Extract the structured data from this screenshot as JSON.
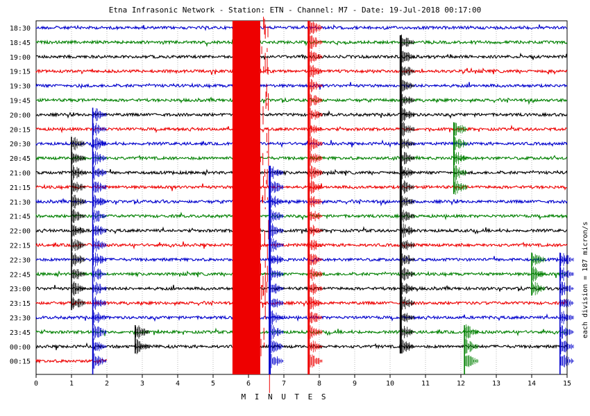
{
  "title": "Etna Infrasonic Network - Station: ETN - Channel: M7 - Date: 19-Jul-2018 00:17:00",
  "chart_data": {
    "type": "line",
    "title": "Etna Infrasonic Network - Station: ETN - Channel: M7 - Date: 19-Jul-2018 00:17:00",
    "xlabel": "M I N U T E S",
    "ylabel": "",
    "scale_note": "each division = 187 micron/s",
    "xlim": [
      0,
      15
    ],
    "x_ticks": [
      "0",
      "1",
      "2",
      "3",
      "4",
      "5",
      "6",
      "7",
      "8",
      "9",
      "10",
      "11",
      "12",
      "13",
      "14",
      "15"
    ],
    "grid": true,
    "trace_colors": [
      "#0000cc",
      "#008000",
      "#000000",
      "#ee0000"
    ],
    "row_labels": [
      "18:30",
      "18:45",
      "19:00",
      "19:15",
      "19:30",
      "19:45",
      "20:00",
      "20:15",
      "20:30",
      "20:45",
      "21:00",
      "21:15",
      "21:30",
      "21:45",
      "22:00",
      "22:15",
      "22:30",
      "22:45",
      "23:00",
      "23:15",
      "23:30",
      "23:45",
      "00:00",
      "00:15"
    ],
    "last_row_end_minute": 2.0,
    "events": [
      {
        "minute": 5.9,
        "rows": [
          0,
          23
        ],
        "amplitude": "saturated",
        "color": "#ee0000"
      },
      {
        "minute": 6.6,
        "rows": [
          10,
          23
        ],
        "amplitude": "high",
        "color": "#0000cc"
      },
      {
        "minute": 7.7,
        "rows": [
          0,
          23
        ],
        "amplitude": "high",
        "color": "#ee0000"
      },
      {
        "minute": 10.3,
        "rows": [
          1,
          22
        ],
        "amplitude": "high",
        "color": "#000000"
      },
      {
        "minute": 1.0,
        "rows": [
          8,
          19
        ],
        "amplitude": "medium",
        "color": "#000000"
      },
      {
        "minute": 1.6,
        "rows": [
          6,
          23
        ],
        "amplitude": "medium",
        "color": "#0000cc"
      },
      {
        "minute": 11.8,
        "rows": [
          7,
          11
        ],
        "amplitude": "medium",
        "color": "#008000"
      },
      {
        "minute": 12.1,
        "rows": [
          21,
          23
        ],
        "amplitude": "medium",
        "color": "#008000"
      },
      {
        "minute": 2.8,
        "rows": [
          21,
          22
        ],
        "amplitude": "medium",
        "color": "#000000"
      },
      {
        "minute": 14.0,
        "rows": [
          16,
          18
        ],
        "amplitude": "medium",
        "color": "#008000"
      },
      {
        "minute": 14.8,
        "rows": [
          16,
          23
        ],
        "amplitude": "medium",
        "color": "#0000cc"
      }
    ]
  }
}
